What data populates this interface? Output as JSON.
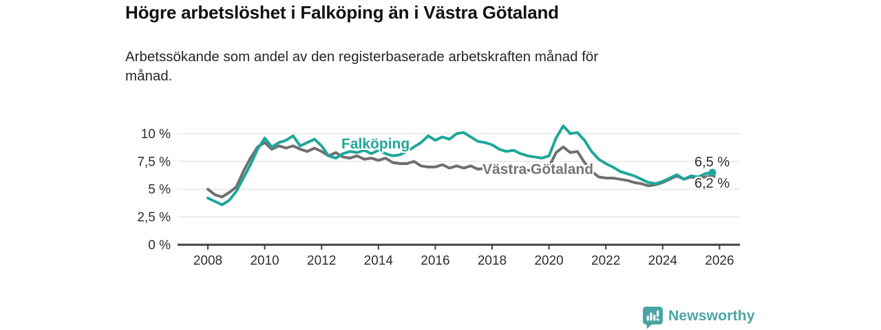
{
  "chart_data": {
    "type": "line",
    "title": "Högre arbetslöshet i Falköping än i Västra Götaland",
    "subtitle": "Arbetssökande som andel av den registerbaserade arbetskraften månad för\nmånad.",
    "unit": "%",
    "grid": "horizontal",
    "legend_position": "inline-labels",
    "x_ticks": [
      2008,
      2010,
      2012,
      2014,
      2016,
      2018,
      2020,
      2022,
      2024,
      2026
    ],
    "x_range": [
      2007.9,
      2026.7
    ],
    "y_ticks": [
      0,
      2.5,
      5,
      7.5,
      10
    ],
    "y_tick_labels": [
      "0 %",
      "2,5 %",
      "5 %",
      "7,5 %",
      "10 %"
    ],
    "ylim": [
      0,
      11
    ],
    "x_start": 2008.0,
    "x_step": 0.25,
    "axis_color": "#3f3f3f",
    "grid_color": "#dcdcdc",
    "tick_label_color": "#2e2e2e",
    "series": [
      {
        "name": "Falköping",
        "color": "#1fa69a",
        "end_label": "6,5 %",
        "end_value": 6.5,
        "values": [
          4.2,
          3.9,
          3.6,
          4.0,
          4.8,
          6.0,
          7.2,
          8.6,
          9.6,
          8.8,
          9.2,
          9.4,
          9.8,
          8.9,
          9.2,
          9.5,
          8.9,
          8.0,
          7.8,
          8.2,
          8.4,
          8.3,
          8.5,
          8.2,
          8.5,
          8.2,
          8.0,
          8.1,
          8.4,
          8.8,
          9.2,
          9.8,
          9.4,
          9.7,
          9.5,
          10.0,
          10.1,
          9.7,
          9.3,
          9.2,
          9.0,
          8.6,
          8.4,
          8.5,
          8.2,
          8.0,
          7.9,
          7.8,
          8.0,
          9.6,
          10.7,
          10.0,
          10.1,
          9.4,
          8.4,
          7.7,
          7.3,
          7.0,
          6.6,
          6.4,
          6.2,
          5.9,
          5.6,
          5.5,
          5.7,
          6.0,
          6.3,
          5.9,
          6.2,
          6.1,
          6.4,
          6.5
        ]
      },
      {
        "name": "Västra Götaland",
        "color": "#6f6f6f",
        "label_color": "#757575",
        "end_label": "6,2 %",
        "end_value": 6.2,
        "values": [
          5.0,
          4.5,
          4.3,
          4.7,
          5.2,
          6.6,
          7.8,
          8.8,
          9.2,
          8.6,
          8.9,
          8.7,
          8.9,
          8.6,
          8.4,
          8.7,
          8.4,
          8.0,
          8.3,
          7.9,
          7.8,
          8.0,
          7.7,
          7.8,
          7.6,
          7.8,
          7.4,
          7.3,
          7.3,
          7.5,
          7.1,
          7.0,
          7.0,
          7.2,
          6.9,
          7.1,
          6.9,
          7.1,
          6.8,
          6.9,
          6.7,
          6.9,
          6.6,
          6.7,
          6.5,
          6.7,
          6.6,
          6.9,
          7.0,
          8.3,
          8.8,
          8.3,
          8.4,
          7.4,
          6.6,
          6.1,
          6.0,
          6.0,
          5.9,
          5.8,
          5.6,
          5.5,
          5.3,
          5.4,
          5.6,
          5.9,
          6.2,
          5.9,
          6.1,
          6.0,
          6.1,
          6.2
        ]
      }
    ]
  },
  "footer": {
    "brand": "Newsworthy",
    "brand_color": "#4aa5a2",
    "logo_icon": "bar-chart-speech-bubble"
  }
}
